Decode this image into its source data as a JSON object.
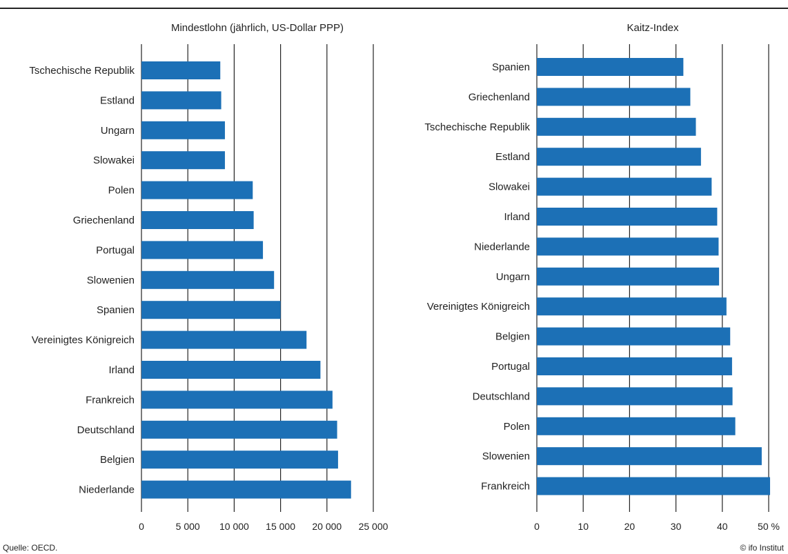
{
  "colors": {
    "bar": "#1c70b6",
    "grid": "#222222",
    "text": "#222222"
  },
  "chart_data": [
    {
      "type": "bar",
      "orientation": "horizontal",
      "title": "Mindestlohn (jährlich, US-Dollar PPP)",
      "categories": [
        "Tschechische Republik",
        "Estland",
        "Ungarn",
        "Slowakei",
        "Polen",
        "Griechenland",
        "Portugal",
        "Slowenien",
        "Spanien",
        "Vereinigtes Königreich",
        "Irland",
        "Frankreich",
        "Deutschland",
        "Belgien",
        "Niederlande"
      ],
      "values": [
        8500,
        8600,
        9000,
        9000,
        12000,
        12100,
        13100,
        14300,
        15000,
        17800,
        19300,
        20600,
        21100,
        21200,
        22600
      ],
      "xlim": [
        0,
        25000
      ],
      "ticks": [
        0,
        5000,
        10000,
        15000,
        20000,
        25000
      ],
      "tick_labels": [
        "0",
        "5 000",
        "10 000",
        "15 000",
        "20 000",
        "25 000"
      ],
      "grid": true
    },
    {
      "type": "bar",
      "orientation": "horizontal",
      "title": "Kaitz-Index",
      "categories": [
        "Spanien",
        "Griechenland",
        "Tschechische Republik",
        "Estland",
        "Slowakei",
        "Irland",
        "Niederlande",
        "Ungarn",
        "Vereinigtes Königreich",
        "Belgien",
        "Portugal",
        "Deutschland",
        "Polen",
        "Slowenien",
        "Frankreich"
      ],
      "values": [
        31.6,
        33.1,
        34.3,
        35.4,
        37.7,
        38.9,
        39.2,
        39.3,
        40.9,
        41.7,
        42.1,
        42.2,
        42.8,
        48.5,
        50.3
      ],
      "xlim": [
        0,
        50
      ],
      "ticks": [
        0,
        10,
        20,
        30,
        40,
        50
      ],
      "tick_labels": [
        "0",
        "10",
        "20",
        "30",
        "40",
        "50 %"
      ],
      "grid": true
    }
  ],
  "footer": {
    "source": "Quelle: OECD.",
    "credit": "© ifo Institut"
  }
}
